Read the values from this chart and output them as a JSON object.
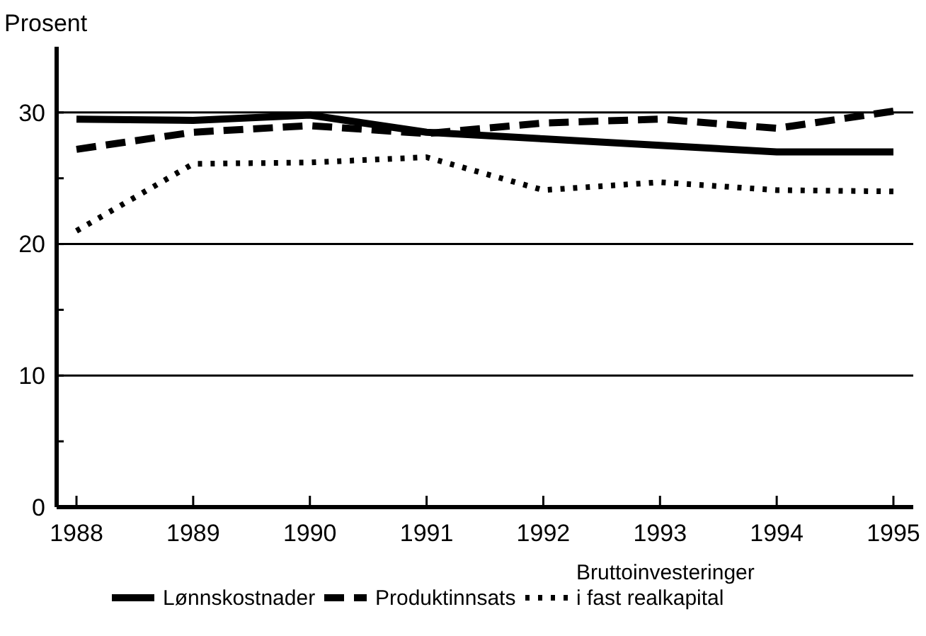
{
  "chart_data": {
    "type": "line",
    "ylabel": "Prosent",
    "x": [
      1988,
      1989,
      1990,
      1991,
      1992,
      1993,
      1994,
      1995
    ],
    "xlim": [
      1987.83,
      1995.17
    ],
    "xticks": [
      1988,
      1989,
      1990,
      1991,
      1992,
      1993,
      1994,
      1995
    ],
    "ylim": [
      0,
      35
    ],
    "yticks": [
      0,
      {
        "value": 5,
        "label": null
      },
      10,
      {
        "value": 15,
        "label": null
      },
      20,
      {
        "value": 25,
        "label": null
      },
      30
    ],
    "grid": "y",
    "legend": "bottom",
    "marker": "none",
    "series": [
      {
        "name": "Lønnskostnader",
        "color": "#000000",
        "line_style": "solid",
        "values": [
          29.5,
          29.4,
          29.8,
          28.5,
          28,
          27.5,
          27,
          27
        ]
      },
      {
        "name": "Produktinnsats",
        "color": "#000000",
        "line_style": "dashed",
        "values": [
          27.2,
          28.5,
          29,
          28.4,
          29.2,
          29.5,
          28.8,
          30.1
        ]
      },
      {
        "name": "Bruttoinvesteringer\ni fast realkapital",
        "color": "#000000",
        "line_style": "dotted",
        "values": [
          21,
          26.1,
          26.2,
          26.6,
          24.1,
          24.7,
          24.1,
          24
        ]
      }
    ]
  }
}
